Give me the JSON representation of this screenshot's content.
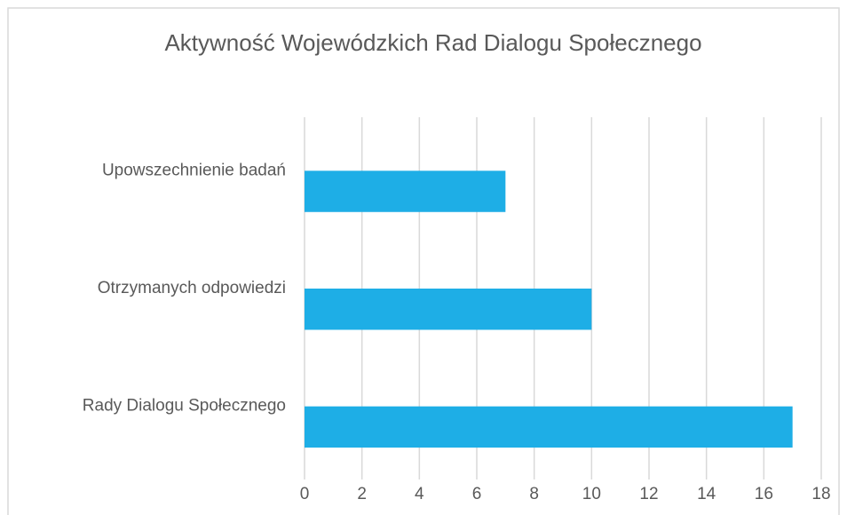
{
  "chart_data": {
    "type": "bar",
    "orientation": "horizontal",
    "title": "Aktywność Wojewódzkich Rad Dialogu Społecznego",
    "categories": [
      "Upowszechnienie badań",
      "Otrzymanych odpowiedzi",
      "Rady Dialogu Społecznego"
    ],
    "values": [
      7,
      10,
      17
    ],
    "color": "#1eaee6",
    "xlim": [
      0,
      18
    ],
    "xticks": [
      0,
      2,
      4,
      6,
      8,
      10,
      12,
      14,
      16,
      18
    ],
    "grid": true
  }
}
